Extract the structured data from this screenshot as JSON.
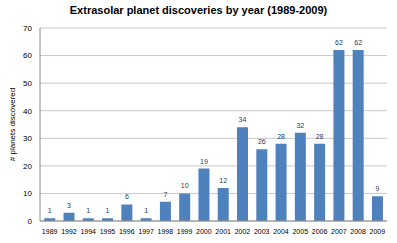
{
  "chart_data": {
    "type": "bar",
    "title": "Extrasolar planet discoveries by year (1989-2009)",
    "y_label": "# planets discovered",
    "categories": [
      "1989",
      "1992",
      "1994",
      "1995",
      "1996",
      "1997",
      "1998",
      "1999",
      "2000",
      "2001",
      "2002",
      "2003",
      "2004",
      "2005",
      "2006",
      "2007",
      "2008",
      "2009"
    ],
    "values": [
      1,
      3,
      1,
      1,
      6,
      1,
      7,
      10,
      19,
      12,
      34,
      26,
      28,
      32,
      28,
      62,
      62,
      9
    ],
    "color": "#4f81bd",
    "ylim": [
      0,
      70
    ],
    "yticks": [
      0,
      10,
      20,
      30,
      40,
      50,
      60,
      70
    ],
    "grid": true,
    "data_labels": true
  }
}
